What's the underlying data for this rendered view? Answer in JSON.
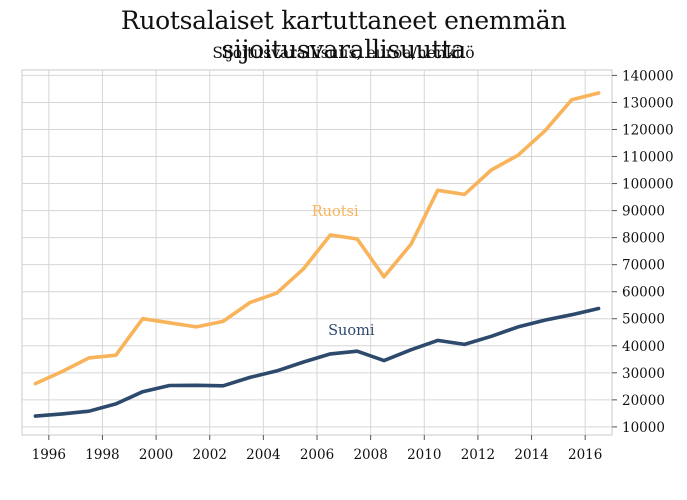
{
  "chart_data": {
    "type": "line",
    "title": "Ruotsalaiset kartuttaneet enemmän sijoitusvarallisuutta",
    "subtitle": "Sijoitusvarallisuus, euroa/henkilö",
    "x_ticks": [
      1996,
      1998,
      2000,
      2002,
      2004,
      2006,
      2008,
      2010,
      2012,
      2014,
      2016
    ],
    "y_ticks": [
      10000,
      20000,
      30000,
      40000,
      50000,
      60000,
      70000,
      80000,
      90000,
      100000,
      110000,
      120000,
      130000,
      140000
    ],
    "xlim": [
      1995,
      2017
    ],
    "ylim": [
      7000,
      142000
    ],
    "y_axis_position": "right",
    "grid": true,
    "series": [
      {
        "name": "Ruotsi",
        "color": "#F9B35A",
        "x": [
          1995.5,
          1996.5,
          1997.5,
          1998.5,
          1999.5,
          2000.5,
          2001.5,
          2002.5,
          2003.5,
          2004.5,
          2005.5,
          2006.5,
          2007.5,
          2008.5,
          2009.5,
          2010.5,
          2011.5,
          2012.5,
          2013.5,
          2014.5,
          2015.5,
          2016.5
        ],
        "values": [
          26000,
          30500,
          35500,
          36500,
          50000,
          48500,
          47000,
          49000,
          56000,
          59500,
          68500,
          81000,
          79500,
          65500,
          77500,
          97500,
          96000,
          105000,
          110500,
          119500,
          131000,
          133500
        ]
      },
      {
        "name": "Suomi",
        "color": "#2D4A6C",
        "x": [
          1995.5,
          1996.5,
          1997.5,
          1998.5,
          1999.5,
          2000.5,
          2001.5,
          2002.5,
          2003.5,
          2004.5,
          2005.5,
          2006.5,
          2007.5,
          2008.5,
          2009.5,
          2010.5,
          2011.5,
          2012.5,
          2013.5,
          2014.5,
          2015.5,
          2016.5
        ],
        "values": [
          14000,
          14800,
          15800,
          18500,
          23000,
          25300,
          25400,
          25200,
          28300,
          30700,
          34000,
          37000,
          38000,
          34500,
          38500,
          42000,
          40500,
          43500,
          47000,
          49500,
          51500,
          53800
        ]
      }
    ]
  }
}
